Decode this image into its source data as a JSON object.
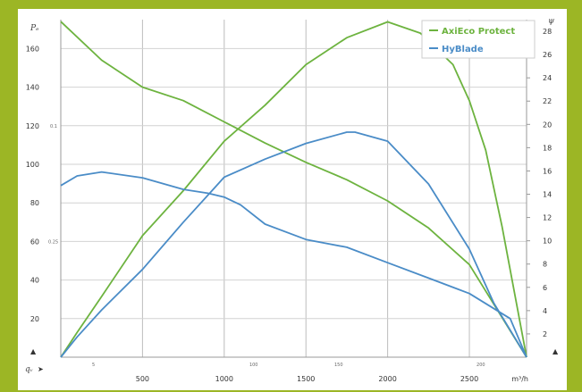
{
  "chart_data": {
    "type": "line",
    "xlabel": "",
    "x_unit": "m³/h",
    "xlim": [
      0,
      2850
    ],
    "x_ticks": [
      "500",
      "1000",
      "1500",
      "2000",
      "2500"
    ],
    "y_left_ticks": [
      "20",
      "40",
      "60",
      "80",
      "100",
      "120",
      "140",
      "160"
    ],
    "ylim_left": [
      0,
      175
    ],
    "y_right_ticks": [
      "2",
      "4",
      "6",
      "8",
      "10",
      "12",
      "14",
      "16",
      "18",
      "20",
      "22",
      "24",
      "26",
      "28"
    ],
    "ylim_right": [
      0,
      29
    ],
    "left_axis_symbol": "Pₑ",
    "right_axis_symbol": "ψ",
    "bottom_axis_symbol": "qᵥ",
    "minor_left_labels": [
      "0.1",
      "0.25"
    ],
    "minor_bottom_labels": [
      "5",
      "100",
      "150",
      "200"
    ],
    "legend_position": "top-right",
    "grid": true,
    "series": [
      {
        "name": "AxiEco Protect",
        "color": "#6db33f",
        "curve": "efficiency",
        "x": [
          0,
          100,
          250,
          500,
          750,
          1000,
          1250,
          1500,
          1750,
          2000,
          2200,
          2400,
          2500,
          2600,
          2700,
          2850
        ],
        "y": [
          0,
          5.5,
          13.5,
          27.0,
          37.0,
          48.0,
          56.0,
          65.0,
          71.0,
          74.5,
          72.0,
          65.0,
          57.0,
          46.0,
          29.0,
          0
        ]
      },
      {
        "name": "AxiEco Protect",
        "color": "#6db33f",
        "curve": "pressure",
        "x": [
          0,
          250,
          500,
          750,
          1000,
          1250,
          1500,
          1750,
          2000,
          2250,
          2500,
          2850
        ],
        "y": [
          174,
          154,
          140,
          133,
          122,
          111,
          101,
          92,
          81,
          67,
          48,
          0
        ]
      },
      {
        "name": "HyBlade",
        "color": "#4a8cc7",
        "curve": "efficiency",
        "x": [
          0,
          100,
          250,
          500,
          750,
          950,
          1000,
          1250,
          1500,
          1750,
          1800,
          2000,
          2250,
          2500,
          2650,
          2850
        ],
        "y": [
          0,
          4.5,
          10.5,
          19.5,
          30.0,
          38.0,
          40.0,
          44.0,
          47.5,
          50.0,
          50.0,
          48.0,
          38.5,
          24.0,
          12.0,
          0
        ]
      },
      {
        "name": "HyBlade",
        "color": "#4a8cc7",
        "curve": "pressure",
        "x": [
          0,
          100,
          250,
          500,
          750,
          900,
          1000,
          1100,
          1250,
          1500,
          1750,
          2000,
          2250,
          2500,
          2750,
          2850
        ],
        "y": [
          89,
          94,
          96,
          93,
          87,
          85,
          83,
          79,
          69,
          61,
          57,
          49,
          41,
          33,
          20,
          0
        ]
      }
    ]
  },
  "legend": {
    "items": [
      {
        "label": "AxiEco Protect",
        "color": "#6db33f"
      },
      {
        "label": "HyBlade",
        "color": "#4a8cc7"
      }
    ]
  }
}
